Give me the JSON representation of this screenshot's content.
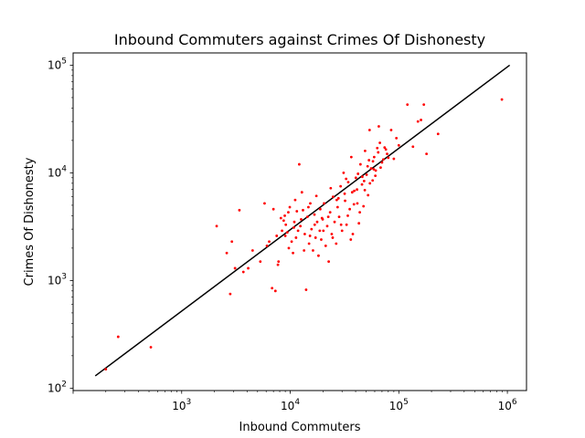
{
  "chart_data": {
    "type": "scatter",
    "title": "Inbound Commuters against Crimes Of Dishonesty",
    "xlabel": "Inbound Commuters",
    "ylabel": "Crimes Of Dishonesty",
    "xscale": "log",
    "yscale": "log",
    "xlim": [
      100,
      1500000
    ],
    "ylim": [
      95,
      130000
    ],
    "x_ticks": [
      {
        "value": 1000,
        "base": "10",
        "exp": "3"
      },
      {
        "value": 10000,
        "base": "10",
        "exp": "4"
      },
      {
        "value": 100000,
        "base": "10",
        "exp": "5"
      },
      {
        "value": 1000000,
        "base": "10",
        "exp": "6"
      }
    ],
    "y_ticks": [
      {
        "value": 100,
        "base": "10",
        "exp": "2"
      },
      {
        "value": 1000,
        "base": "10",
        "exp": "3"
      },
      {
        "value": 10000,
        "base": "10",
        "exp": "4"
      },
      {
        "value": 100000,
        "base": "10",
        "exp": "5"
      }
    ],
    "grid": false,
    "point_color": "#ff0000",
    "line_color": "#000000",
    "fit_line": {
      "x": [
        160,
        1050000
      ],
      "y": [
        130,
        100000
      ]
    },
    "points": [
      [
        200,
        150
      ],
      [
        260,
        300
      ],
      [
        520,
        240
      ],
      [
        890000,
        48000
      ],
      [
        2100,
        3200
      ],
      [
        2600,
        1800
      ],
      [
        2800,
        750
      ],
      [
        2900,
        2300
      ],
      [
        3100,
        1300
      ],
      [
        3400,
        4500
      ],
      [
        3700,
        1200
      ],
      [
        4100,
        1300
      ],
      [
        4500,
        1900
      ],
      [
        5300,
        1500
      ],
      [
        5800,
        5200
      ],
      [
        6100,
        2100
      ],
      [
        6400,
        2300
      ],
      [
        6800,
        850
      ],
      [
        7000,
        4600
      ],
      [
        7300,
        800
      ],
      [
        7700,
        1400
      ],
      [
        7800,
        1500
      ],
      [
        8200,
        3800
      ],
      [
        8400,
        2900
      ],
      [
        8900,
        4000
      ],
      [
        9100,
        3300
      ],
      [
        9400,
        2800
      ],
      [
        9700,
        2000
      ],
      [
        9900,
        4800
      ],
      [
        10300,
        2300
      ],
      [
        10600,
        1800
      ],
      [
        10900,
        3500
      ],
      [
        11300,
        2500
      ],
      [
        11800,
        2900
      ],
      [
        12100,
        12000
      ],
      [
        12400,
        3200
      ],
      [
        12800,
        6600
      ],
      [
        13100,
        4500
      ],
      [
        13600,
        2700
      ],
      [
        14000,
        820
      ],
      [
        14400,
        3900
      ],
      [
        14900,
        2200
      ],
      [
        15300,
        5200
      ],
      [
        15700,
        3000
      ],
      [
        16200,
        1900
      ],
      [
        16700,
        4100
      ],
      [
        17100,
        2500
      ],
      [
        17700,
        3500
      ],
      [
        18200,
        1700
      ],
      [
        18700,
        2900
      ],
      [
        19300,
        2400
      ],
      [
        19900,
        3700
      ],
      [
        20500,
        5200
      ],
      [
        21200,
        2100
      ],
      [
        21900,
        3200
      ],
      [
        22600,
        1500
      ],
      [
        23300,
        4300
      ],
      [
        24100,
        2700
      ],
      [
        24800,
        6000
      ],
      [
        25600,
        3500
      ],
      [
        26500,
        2200
      ],
      [
        27300,
        4800
      ],
      [
        28200,
        3900
      ],
      [
        29100,
        7500
      ],
      [
        30000,
        2900
      ],
      [
        31000,
        10000
      ],
      [
        32000,
        5500
      ],
      [
        33000,
        3300
      ],
      [
        34200,
        8200
      ],
      [
        35300,
        4600
      ],
      [
        36500,
        14000
      ],
      [
        37700,
        2700
      ],
      [
        38900,
        6800
      ],
      [
        40200,
        9000
      ],
      [
        41500,
        5200
      ],
      [
        42900,
        3400
      ],
      [
        44300,
        12000
      ],
      [
        45800,
        7800
      ],
      [
        47300,
        4900
      ],
      [
        48900,
        16000
      ],
      [
        50500,
        9600
      ],
      [
        52100,
        6200
      ],
      [
        53800,
        25000
      ],
      [
        55600,
        11000
      ],
      [
        57400,
        8500
      ],
      [
        59300,
        14000
      ],
      [
        61300,
        10500
      ],
      [
        63300,
        17000
      ],
      [
        65400,
        27000
      ],
      [
        70000,
        12500
      ],
      [
        78000,
        15000
      ],
      [
        85000,
        25000
      ],
      [
        90000,
        13500
      ],
      [
        95000,
        21000
      ],
      [
        120000,
        43000
      ],
      [
        150000,
        30000
      ],
      [
        170000,
        43000
      ],
      [
        180000,
        15000
      ],
      [
        230000,
        23000
      ],
      [
        9000,
        2600
      ],
      [
        10800,
        3100
      ],
      [
        11500,
        4400
      ],
      [
        13400,
        1900
      ],
      [
        15200,
        2600
      ],
      [
        16800,
        3300
      ],
      [
        18900,
        4600
      ],
      [
        20200,
        2900
      ],
      [
        22400,
        3900
      ],
      [
        24600,
        2500
      ],
      [
        26800,
        5600
      ],
      [
        29400,
        3300
      ],
      [
        31700,
        6400
      ],
      [
        33900,
        4000
      ],
      [
        36100,
        2400
      ],
      [
        38600,
        5100
      ],
      [
        41200,
        7000
      ],
      [
        43700,
        4300
      ],
      [
        46100,
        9200
      ],
      [
        48600,
        6900
      ],
      [
        51600,
        11500
      ],
      [
        54200,
        8000
      ],
      [
        57800,
        12800
      ],
      [
        60800,
        9400
      ],
      [
        64600,
        15500
      ],
      [
        68000,
        11200
      ],
      [
        72000,
        13300
      ],
      [
        76000,
        16500
      ],
      [
        80000,
        13800
      ],
      [
        100000,
        18000
      ],
      [
        135000,
        17500
      ],
      [
        160000,
        31000
      ],
      [
        7500,
        2600
      ],
      [
        8700,
        3600
      ],
      [
        9600,
        4300
      ],
      [
        11100,
        5600
      ],
      [
        12600,
        3700
      ],
      [
        14700,
        4800
      ],
      [
        17400,
        6100
      ],
      [
        19600,
        3800
      ],
      [
        23600,
        7200
      ],
      [
        27800,
        5800
      ],
      [
        32700,
        8800
      ],
      [
        37200,
        6600
      ],
      [
        42100,
        9800
      ],
      [
        47900,
        8400
      ],
      [
        53100,
        13100
      ],
      [
        58800,
        10800
      ],
      [
        66900,
        19000
      ],
      [
        74000,
        17200
      ]
    ]
  }
}
